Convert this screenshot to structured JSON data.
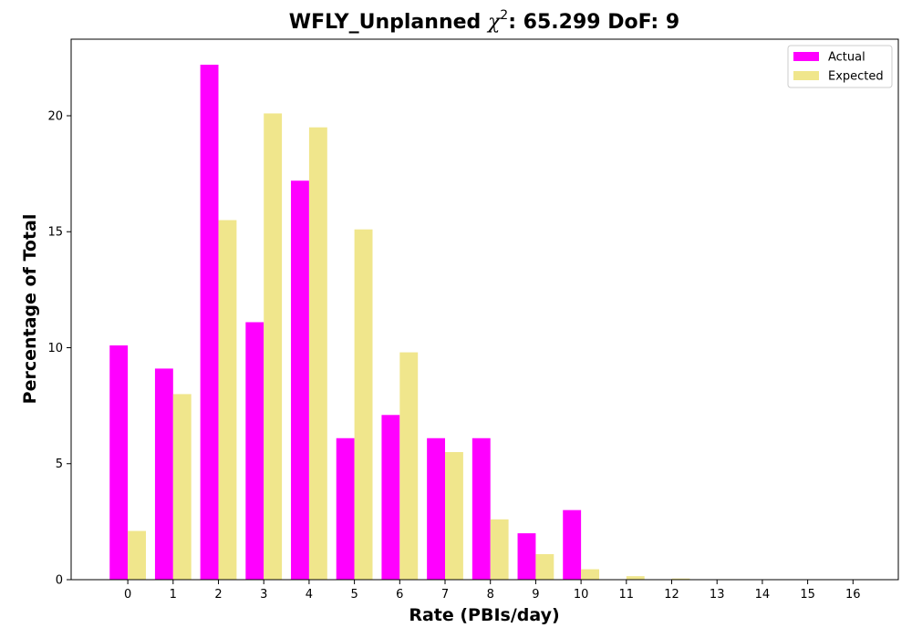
{
  "chart_data": {
    "type": "bar",
    "title": {
      "prefix": "WFLY_Unplanned ",
      "chi_symbol": "χ",
      "chi_exponent": "2",
      "suffix": ": 65.299 DoF: 9"
    },
    "xlabel": "Rate (PBIs/day)",
    "ylabel": "Percentage of Total",
    "categories": [
      "0",
      "1",
      "2",
      "3",
      "4",
      "5",
      "6",
      "7",
      "8",
      "9",
      "10",
      "11",
      "12",
      "13",
      "14",
      "15",
      "16"
    ],
    "series": [
      {
        "name": "Actual",
        "color": "#ff00ff",
        "values": [
          10.1,
          9.1,
          22.2,
          11.1,
          17.2,
          6.1,
          7.1,
          6.1,
          6.1,
          2.0,
          3.0,
          0,
          0,
          0,
          0,
          0,
          0
        ]
      },
      {
        "name": "Expected",
        "color": "#f0e68c",
        "values": [
          2.1,
          8.0,
          15.5,
          20.1,
          19.5,
          15.1,
          9.8,
          5.5,
          2.6,
          1.1,
          0.45,
          0.15,
          0.05,
          0.02,
          0,
          0,
          0
        ]
      }
    ],
    "yticks": [
      0,
      5,
      10,
      15,
      20
    ],
    "ylim": [
      0,
      23.3
    ],
    "xlim": [
      -1.25,
      17.0
    ],
    "grid": false,
    "legend": "top-right"
  }
}
